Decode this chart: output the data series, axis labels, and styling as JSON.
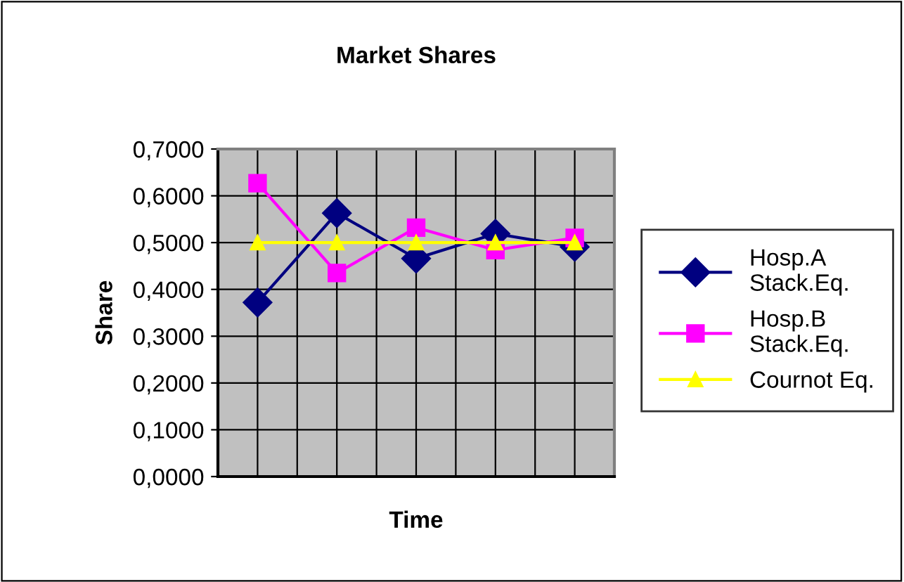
{
  "chart_data": {
    "type": "line",
    "title": "Market Shares",
    "xlabel": "Time",
    "ylabel": "Share",
    "categories": [
      null,
      null,
      null,
      null,
      null
    ],
    "series": [
      {
        "name": "Hosp.A Stack.Eq.",
        "color": "#000080",
        "marker": "diamond",
        "values": [
          0.372,
          0.563,
          0.466,
          0.519,
          0.491
        ]
      },
      {
        "name": "Hosp.B Stack.Eq.",
        "color": "#ff00ff",
        "marker": "square",
        "values": [
          0.627,
          0.435,
          0.532,
          0.484,
          0.51
        ]
      },
      {
        "name": "Cournot Eq.",
        "color": "#ffff00",
        "marker": "triangle",
        "values": [
          0.5,
          0.5,
          0.5,
          0.5,
          0.5
        ]
      }
    ],
    "ylim": [
      0,
      0.7
    ],
    "yticks": [
      {
        "value": 0,
        "label": "0,0000"
      },
      {
        "value": 0.1,
        "label": "0,1000"
      },
      {
        "value": 0.2,
        "label": "0,2000"
      },
      {
        "value": 0.3,
        "label": "0,3000"
      },
      {
        "value": 0.4,
        "label": "0,4000"
      },
      {
        "value": 0.5,
        "label": "0,5000"
      },
      {
        "value": 0.6,
        "label": "0,6000"
      },
      {
        "value": 0.7,
        "label": "0,7000"
      }
    ],
    "grid": true,
    "legend": "right"
  }
}
